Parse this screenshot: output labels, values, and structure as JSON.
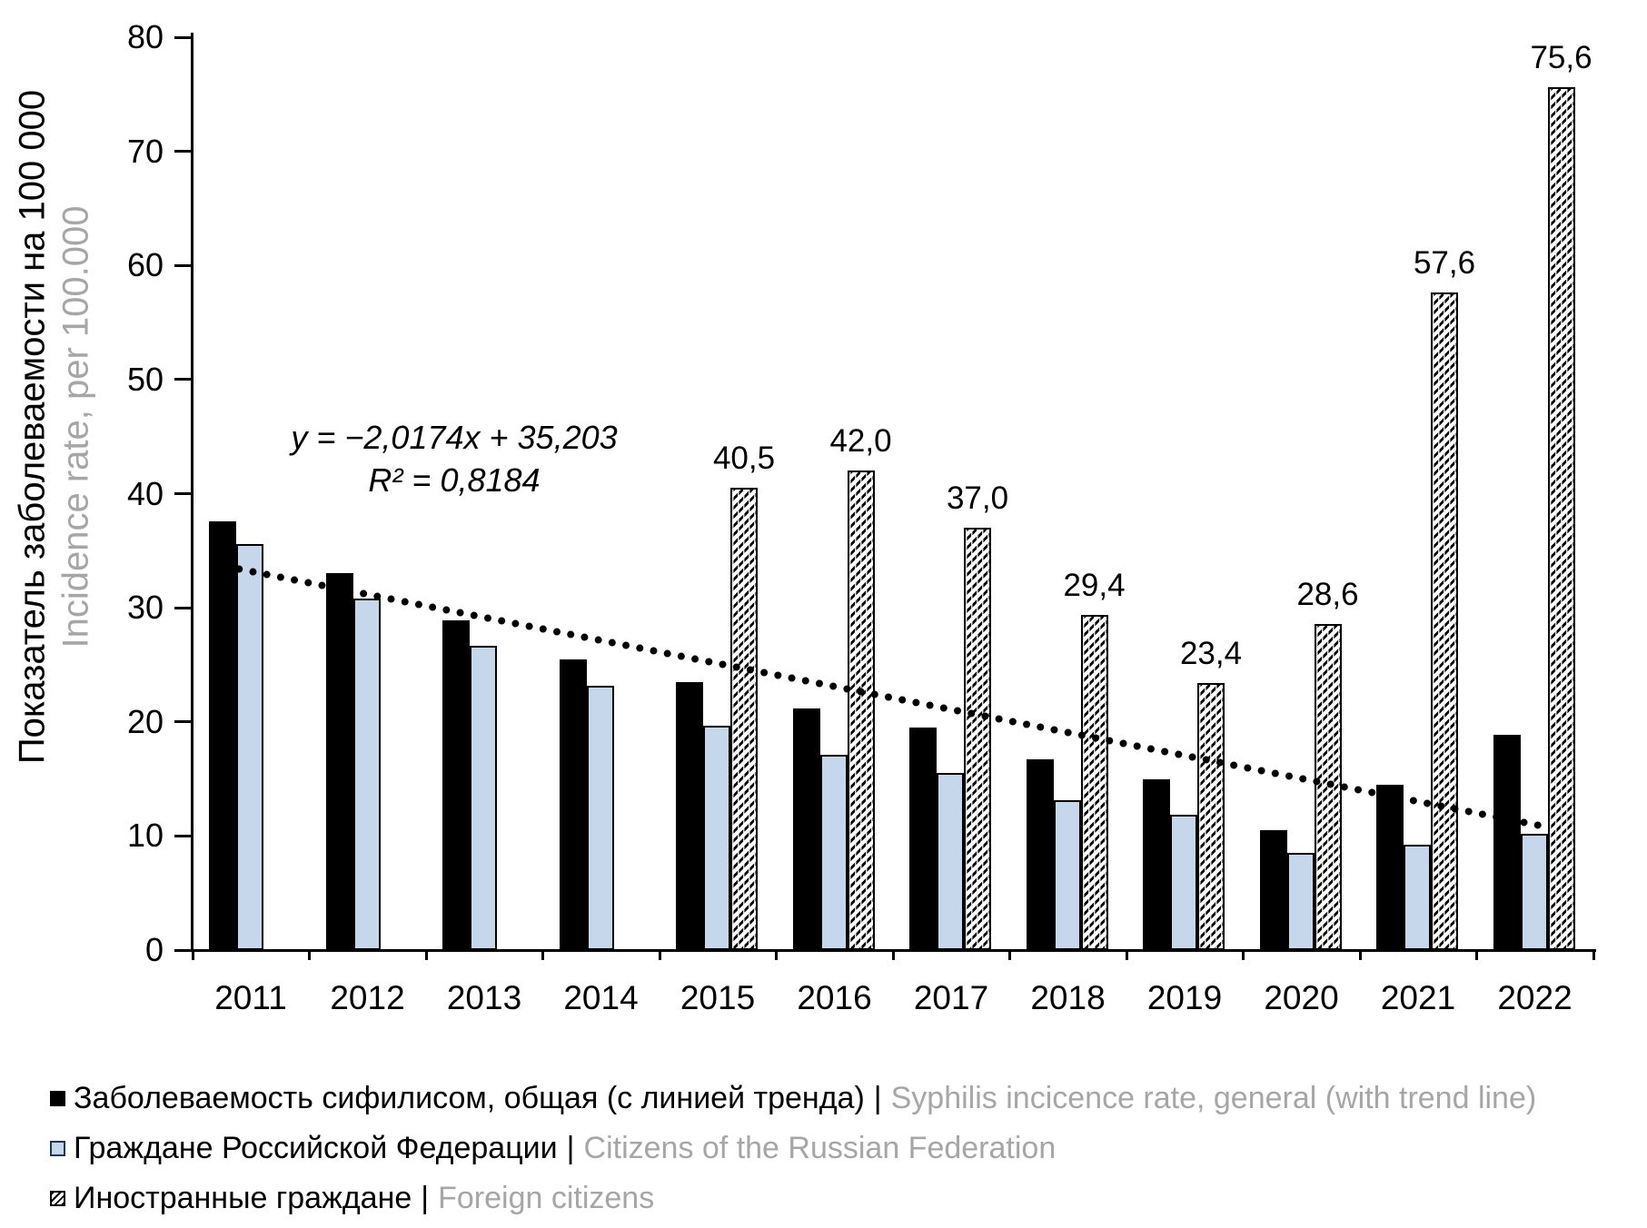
{
  "chart_data": {
    "type": "bar",
    "categories": [
      "2011",
      "2012",
      "2013",
      "2014",
      "2015",
      "2016",
      "2017",
      "2018",
      "2019",
      "2020",
      "2021",
      "2022"
    ],
    "series": [
      {
        "id": "general",
        "label_ru": "Заболеваемость сифилисом, общая (с линией тренда)",
        "label_en": "Syphilis incicence rate, general (with trend line)",
        "values": [
          37.6,
          33.0,
          28.9,
          25.5,
          23.5,
          21.2,
          19.5,
          16.7,
          15.0,
          10.5,
          14.5,
          18.9
        ]
      },
      {
        "id": "citizens",
        "label_ru": "Граждане Российской Федерации",
        "label_en": "Citizens of the Russian Federation",
        "values": [
          35.6,
          30.8,
          26.7,
          23.2,
          19.7,
          17.1,
          15.5,
          13.1,
          11.9,
          8.5,
          9.2,
          10.2
        ]
      },
      {
        "id": "foreign",
        "label_ru": "Иностранные граждане",
        "label_en": "Foreign citizens",
        "values": [
          null,
          null,
          null,
          null,
          40.5,
          42.0,
          37.0,
          29.4,
          23.4,
          28.6,
          57.6,
          75.6
        ],
        "data_labels": [
          "",
          "",
          "",
          "",
          "40,5",
          "42,0",
          "37,0",
          "29,4",
          "23,4",
          "28,6",
          "57,6",
          "75,6"
        ]
      }
    ],
    "trendline": {
      "on_series": "general",
      "slope": -2.0174,
      "intercept": 35.203,
      "equation_text": "y = −2,0174x + 35,203",
      "r2_text": "R² = 0,8184"
    },
    "ylabel_ru": "Показатель заболеваемости на 100 000",
    "ylabel_en": "Incidence rate, per 100.000",
    "ylim": [
      0,
      80
    ],
    "ytick_step": 10,
    "grid": false,
    "legend_position": "bottom-left"
  },
  "legend": [
    {
      "swatch": "general",
      "ru": "Заболеваемость сифилисом, общая (с линией тренда)",
      "pipe": "|",
      "en": "Syphilis incicence rate, general (with trend line)"
    },
    {
      "swatch": "citizens",
      "ru": "Граждане Российской Федерации",
      "pipe": "|",
      "en": "Citizens of the Russian Federation"
    },
    {
      "swatch": "foreign",
      "ru": "Иностранные граждане",
      "pipe": "|",
      "en": "Foreign citizens"
    }
  ],
  "colors": {
    "bar_general": "#000000",
    "bar_citizens_fill": "#c6d7ec",
    "bar_border": "#000000",
    "hatch_stripe": "#000000",
    "secondary_text": "#a6a6a6",
    "trendline": "#000000"
  }
}
